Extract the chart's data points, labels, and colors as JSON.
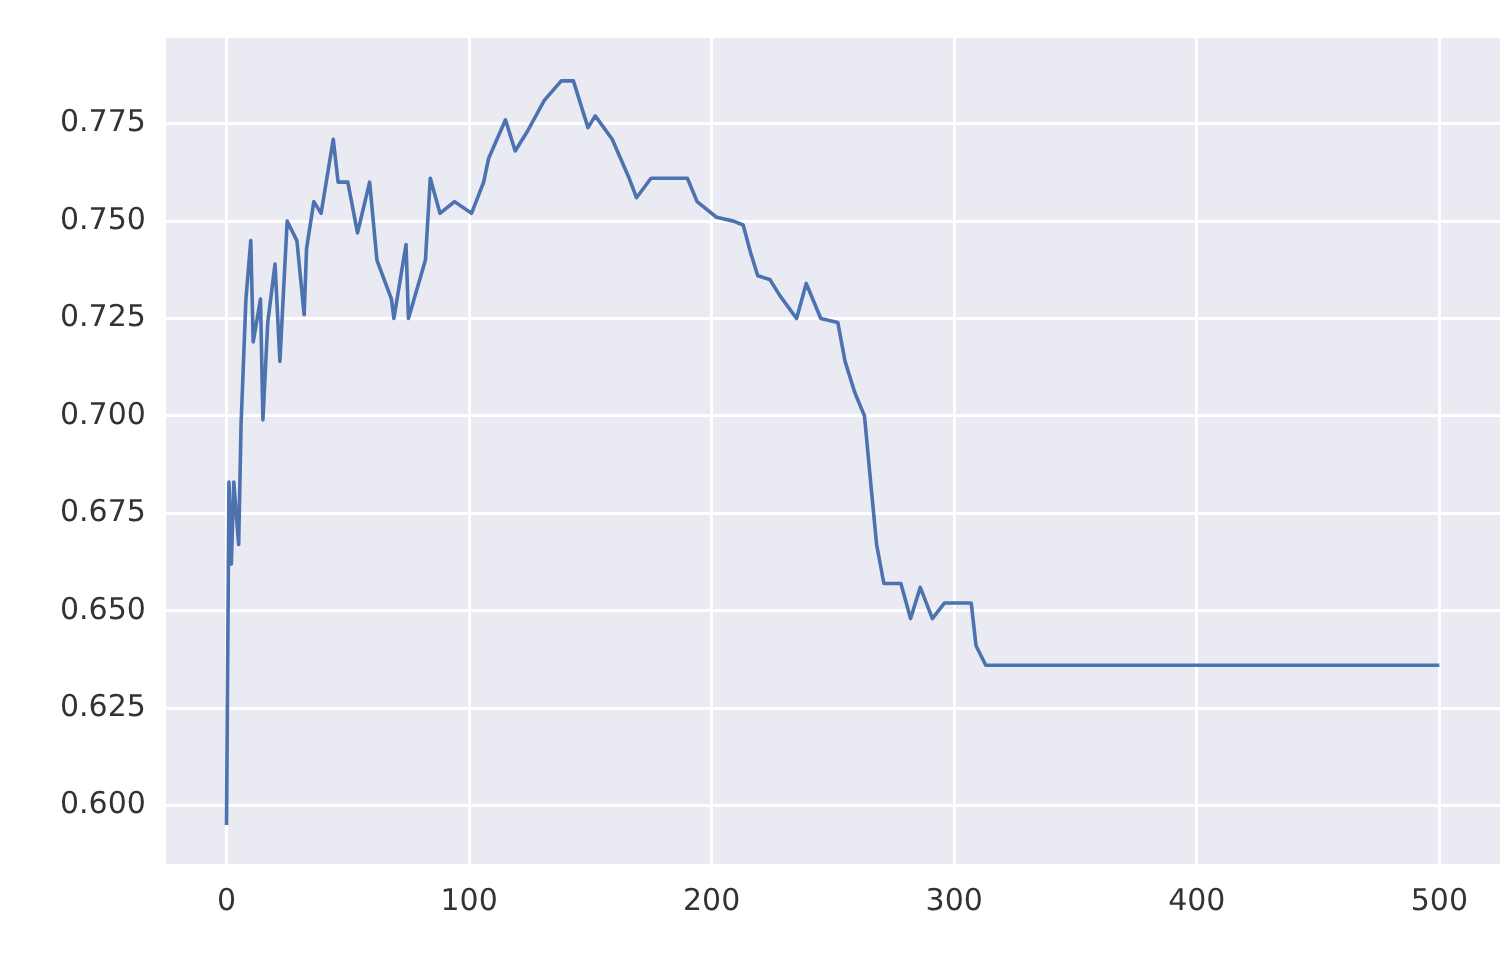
{
  "chart_data": {
    "type": "line",
    "grid": true,
    "marker": "none",
    "line_style": "solid",
    "xlim": [
      -25,
      525
    ],
    "xticks": [
      0,
      100,
      200,
      300,
      400,
      500
    ],
    "ylim": [
      0.585,
      0.797
    ],
    "yticks": [
      {
        "value": 0.6,
        "label": "0.600"
      },
      0.625,
      {
        "value": 0.65,
        "label": "0.650"
      },
      0.675,
      {
        "value": 0.7,
        "label": "0.700"
      },
      0.725,
      {
        "value": 0.75,
        "label": "0.750"
      },
      0.775
    ],
    "series": [
      {
        "color": "#4c72b0",
        "x": [
          0,
          1,
          2,
          3,
          5,
          6,
          8,
          10,
          11,
          14,
          15,
          17,
          20,
          22,
          25,
          29,
          32,
          33,
          36,
          39,
          44,
          46,
          50,
          54,
          59,
          62,
          68,
          69,
          74,
          75,
          82,
          84,
          88,
          94,
          101,
          106,
          108,
          115,
          119,
          124,
          131,
          138,
          143,
          149,
          152,
          159,
          166,
          169,
          175,
          190,
          194,
          202,
          209,
          213,
          216,
          219,
          224,
          228,
          235,
          239,
          245,
          252,
          255,
          259,
          263,
          266,
          268,
          271,
          278,
          282,
          286,
          291,
          296,
          307,
          309,
          313,
          400,
          500
        ],
        "values": [
          0.595,
          0.683,
          0.662,
          0.683,
          0.667,
          0.698,
          0.73,
          0.745,
          0.719,
          0.73,
          0.699,
          0.724,
          0.739,
          0.714,
          0.75,
          0.745,
          0.726,
          0.743,
          0.755,
          0.752,
          0.771,
          0.76,
          0.76,
          0.747,
          0.76,
          0.74,
          0.73,
          0.725,
          0.744,
          0.725,
          0.74,
          0.761,
          0.752,
          0.755,
          0.752,
          0.76,
          0.766,
          0.776,
          0.768,
          0.773,
          0.781,
          0.786,
          0.786,
          0.774,
          0.777,
          0.771,
          0.761,
          0.756,
          0.761,
          0.761,
          0.755,
          0.751,
          0.75,
          0.749,
          0.742,
          0.736,
          0.735,
          0.731,
          0.725,
          0.734,
          0.725,
          0.724,
          0.714,
          0.706,
          0.7,
          0.68,
          0.667,
          0.657,
          0.657,
          0.648,
          0.656,
          0.648,
          0.652,
          0.652,
          0.641,
          0.636,
          0.636,
          0.636
        ]
      }
    ]
  }
}
